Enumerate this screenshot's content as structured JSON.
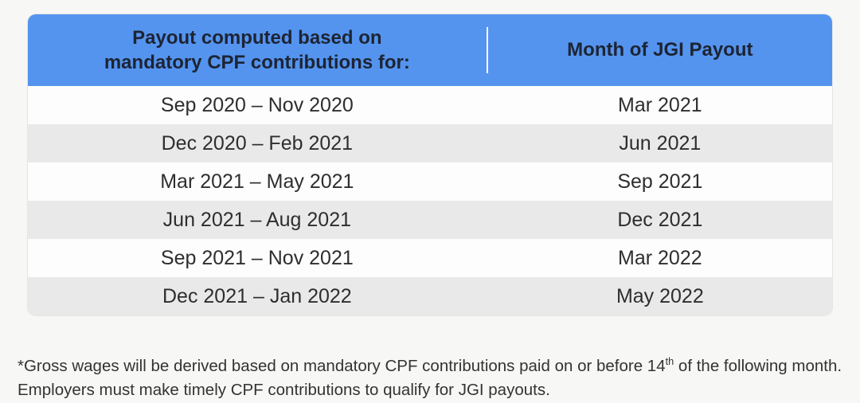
{
  "colors": {
    "accent_blue": "#5494ef",
    "header_text": "#1d2433",
    "row_base": "#fdfdfd",
    "row_alt": "#e9e9e9",
    "page_bg": "#f7f7f5"
  },
  "table": {
    "header": {
      "period_label": "Payout computed based on\nmandatory CPF contributions for:",
      "payout_label": "Month of JGI Payout"
    },
    "rows": [
      {
        "period": "Sep 2020 – Nov 2020",
        "payout": "Mar 2021"
      },
      {
        "period": "Dec 2020 – Feb 2021",
        "payout": "Jun 2021"
      },
      {
        "period": "Mar 2021 – May 2021",
        "payout": "Sep 2021"
      },
      {
        "period": "Jun 2021 – Aug 2021",
        "payout": "Dec 2021"
      },
      {
        "period": "Sep 2021 – Nov 2021",
        "payout": "Mar 2022"
      },
      {
        "period": "Dec 2021 – Jan 2022",
        "payout": "May 2022"
      }
    ]
  },
  "footnote": {
    "text_before_sup": "*Gross wages will be derived based on mandatory CPF contributions paid on or before 14",
    "sup": "th",
    "text_after_sup": " of the following month. Employers must make timely CPF contributions to qualify for JGI payouts."
  }
}
